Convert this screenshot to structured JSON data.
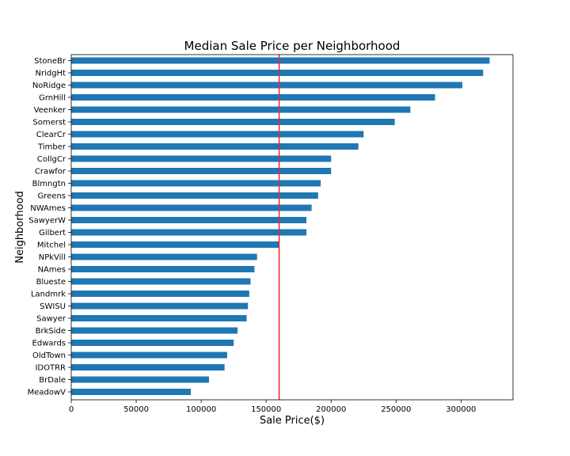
{
  "chart_data": {
    "type": "bar",
    "orientation": "horizontal",
    "title": "Median Sale Price per Neighborhood",
    "xlabel": "Sale Price($)",
    "ylabel": "Neighborhood",
    "xlim": [
      0,
      340000
    ],
    "xticks": [
      0,
      50000,
      100000,
      150000,
      200000,
      250000,
      300000
    ],
    "grid": false,
    "bar_color": "#1f77b4",
    "reference_line": {
      "value": 160000,
      "color": "#e8282d"
    },
    "categories": [
      "StoneBr",
      "NridgHt",
      "NoRidge",
      "GrnHill",
      "Veenker",
      "Somerst",
      "ClearCr",
      "Timber",
      "CollgCr",
      "Crawfor",
      "Blmngtn",
      "Greens",
      "NWAmes",
      "SawyerW",
      "Gilbert",
      "Mitchel",
      "NPkVill",
      "NAmes",
      "Blueste",
      "Landmrk",
      "SWISU",
      "Sawyer",
      "BrkSide",
      "Edwards",
      "OldTown",
      "IDOTRR",
      "BrDale",
      "MeadowV"
    ],
    "values": [
      322000,
      317000,
      301000,
      280000,
      261000,
      249000,
      225000,
      221000,
      200000,
      200000,
      192000,
      190000,
      185000,
      181000,
      181000,
      160000,
      143000,
      141000,
      138000,
      137000,
      136000,
      135000,
      128000,
      125000,
      120000,
      118000,
      106000,
      92000
    ]
  }
}
